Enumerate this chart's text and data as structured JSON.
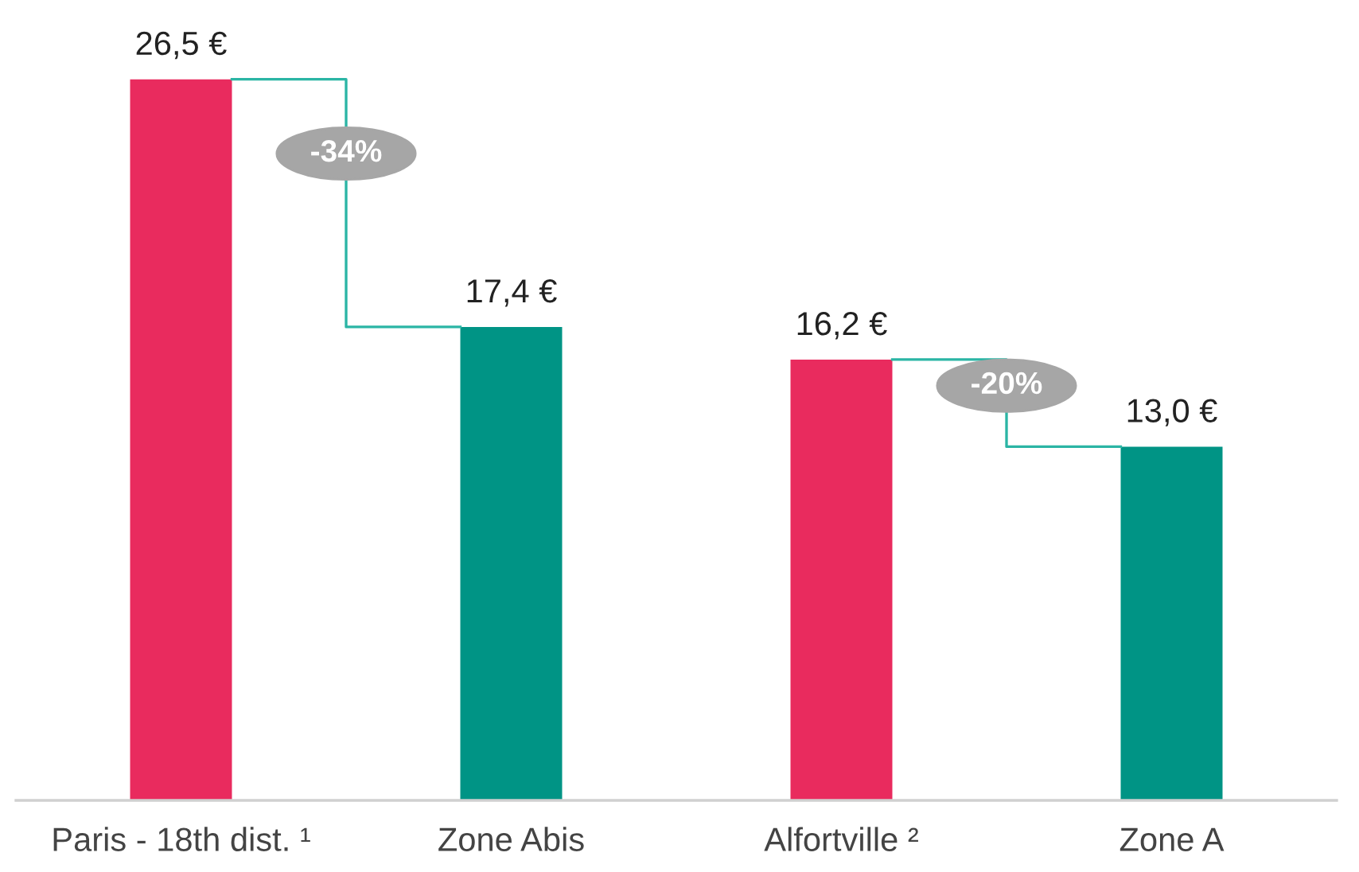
{
  "chart_data": {
    "type": "bar",
    "categories": [
      "Paris - 18th dist. ¹",
      "Zone Abis",
      "Alfortville ²",
      "Zone A"
    ],
    "values": [
      26.5,
      17.4,
      16.2,
      13.0
    ],
    "colors": [
      "#e92b5e",
      "#009485",
      "#e92b5e",
      "#009485"
    ],
    "value_labels": [
      "26,5 €",
      "17,4 €",
      "16,2 €",
      "13,0 €"
    ],
    "annotations": [
      "-34%",
      "-20%"
    ],
    "grid": false,
    "legend": false
  }
}
